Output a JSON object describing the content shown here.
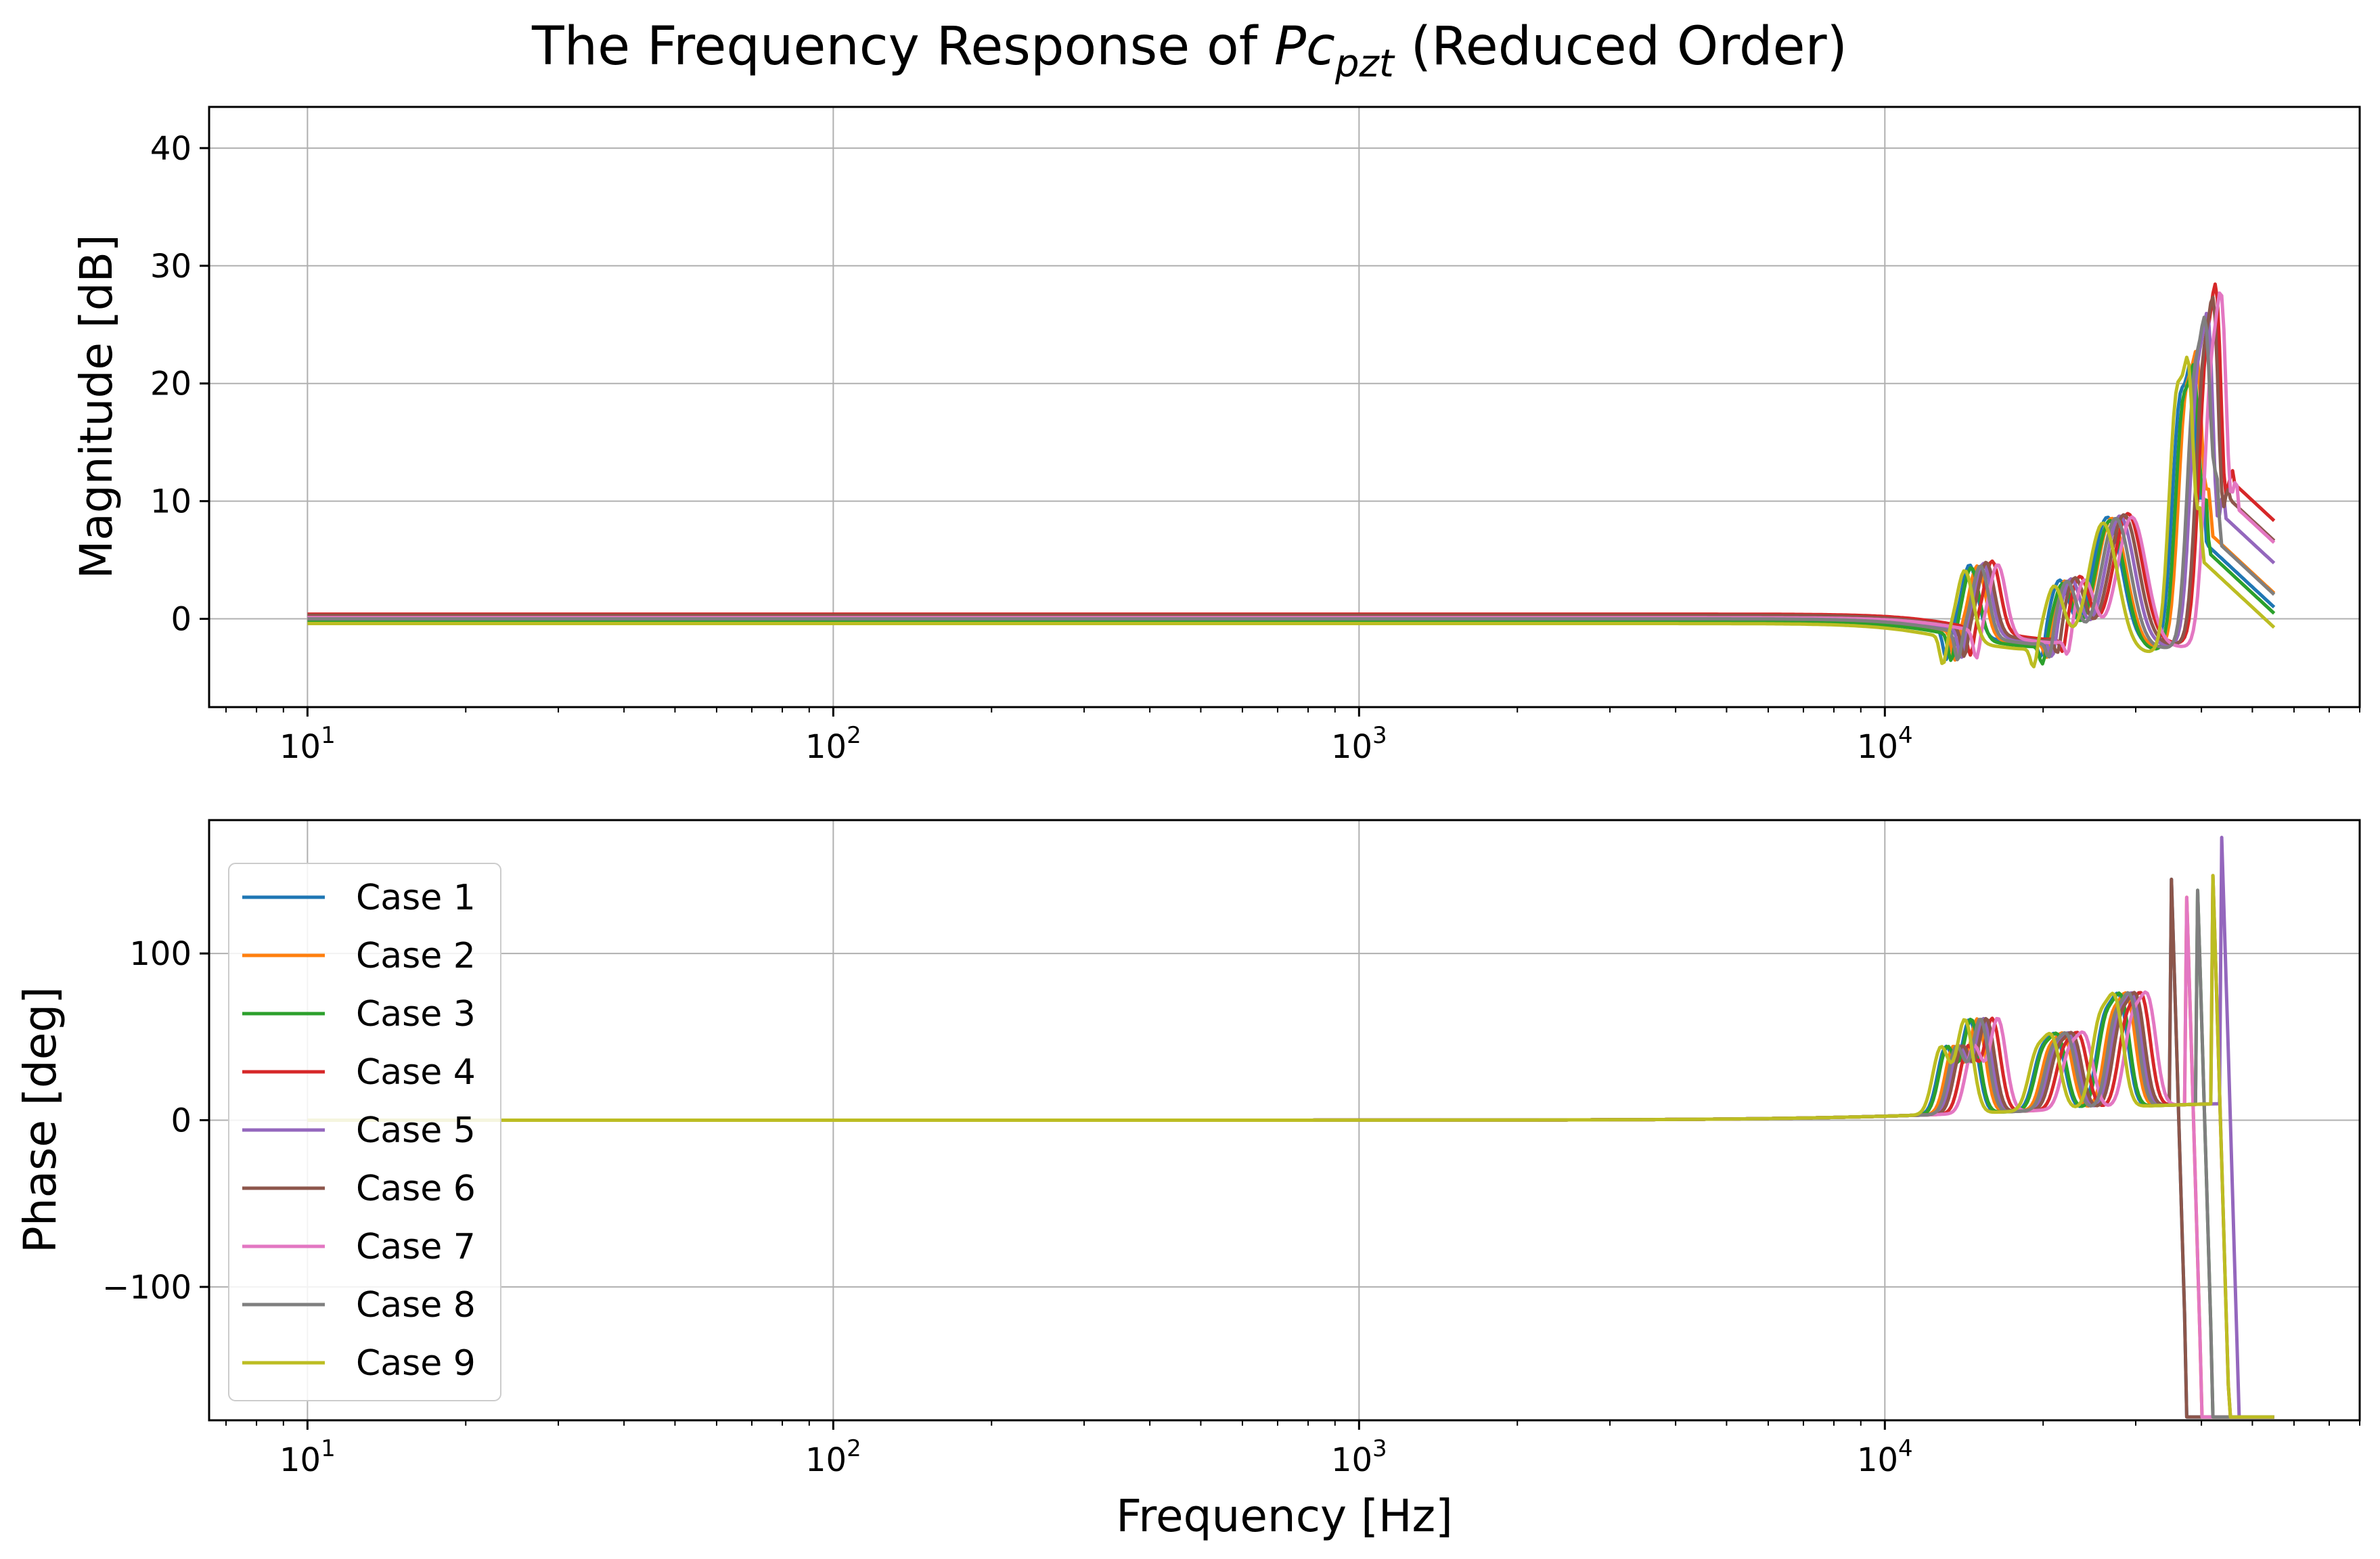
{
  "title": {
    "prefix": "The Frequency Response of ",
    "symbol": "Pc",
    "subscript": "pzt",
    "suffix": " (Reduced Order)"
  },
  "colors": [
    "#1f77b4",
    "#ff7f0e",
    "#2ca02c",
    "#d62728",
    "#9467bd",
    "#8c564b",
    "#e377c2",
    "#7f7f7f",
    "#bcbd22"
  ],
  "chart_data": [
    {
      "type": "line",
      "name": "magnitude",
      "xscale": "log",
      "xlim": [
        6.5,
        80000
      ],
      "ylim": [
        -7.5,
        43.5
      ],
      "yticks": [
        0,
        10,
        20,
        30,
        40
      ],
      "xticks": [
        10,
        100,
        1000,
        10000
      ],
      "xtick_base": "10",
      "xtick_exponents": [
        "1",
        "2",
        "3",
        "4"
      ],
      "xlabel": "",
      "ylabel": "Magnitude [dB]",
      "grid": true,
      "series": [
        {
          "name": "Case 1",
          "dc": 0.1,
          "f0": 13500,
          "f1": 14500,
          "f2": 20500,
          "f3": 21500,
          "f4": 26500,
          "f5": 36500,
          "f6": 38500,
          "f7": 40500,
          "p2": 35,
          "p3": 28,
          "t": -1.0
        },
        {
          "name": "Case 2",
          "dc": 0.0,
          "f0": 14000,
          "f1": 15000,
          "f2": 21000,
          "f3": 22000,
          "f4": 27000,
          "f5": 37500,
          "f6": 39500,
          "f7": 41500,
          "p2": 36,
          "p3": 29,
          "t": -0.5
        },
        {
          "name": "Case 3",
          "dc": -0.2,
          "f0": 13800,
          "f1": 14600,
          "f2": 20600,
          "f3": 21800,
          "f4": 26800,
          "f5": 37000,
          "f6": 39000,
          "f7": 41000,
          "p2": 35,
          "p3": 28,
          "t": -1.5
        },
        {
          "name": "Case 4",
          "dc": 0.4,
          "f0": 15000,
          "f1": 16000,
          "f2": 22500,
          "f3": 23500,
          "f4": 29000,
          "f5": 41000,
          "f6": 43000,
          "f7": 45500,
          "p2": 41,
          "p3": 33,
          "t": 2.5
        },
        {
          "name": "Case 5",
          "dc": 0.2,
          "f0": 14400,
          "f1": 15400,
          "f2": 21500,
          "f3": 22600,
          "f4": 28000,
          "f5": 39500,
          "f6": 41500,
          "f7": 44000,
          "p2": 39,
          "p3": 30,
          "t": 0.5
        },
        {
          "name": "Case 6",
          "dc": 0.3,
          "f0": 14600,
          "f1": 15600,
          "f2": 22000,
          "f3": 23000,
          "f4": 28500,
          "f5": 40500,
          "f6": 42500,
          "f7": 45000,
          "p2": 40,
          "p3": 31,
          "t": 1.5
        },
        {
          "name": "Case 7",
          "dc": 0.1,
          "f0": 15400,
          "f1": 16400,
          "f2": 23000,
          "f3": 24000,
          "f4": 29500,
          "f5": 42000,
          "f6": 44000,
          "f7": 46500,
          "p2": 40,
          "p3": 32,
          "t": 1.0
        },
        {
          "name": "Case 8",
          "dc": 0.0,
          "f0": 14200,
          "f1": 15200,
          "f2": 21200,
          "f3": 22200,
          "f4": 27500,
          "f5": 39000,
          "f6": 41000,
          "f7": 43000,
          "p2": 39,
          "p3": 30,
          "t": -1.0
        },
        {
          "name": "Case 9",
          "dc": -0.4,
          "f0": 13300,
          "f1": 14200,
          "f2": 19800,
          "f3": 21000,
          "f4": 26000,
          "f5": 36000,
          "f6": 38000,
          "f7": 40000,
          "p2": 37,
          "p3": 27,
          "t": -2.0
        }
      ]
    },
    {
      "type": "line",
      "name": "phase",
      "xscale": "log",
      "xlim": [
        6.5,
        80000
      ],
      "ylim": [
        -180,
        180
      ],
      "yticks": [
        -100,
        0,
        100
      ],
      "ytick_labels": [
        "−100",
        "0",
        "100"
      ],
      "xticks": [
        10,
        100,
        1000,
        10000
      ],
      "xtick_base": "10",
      "xtick_exponents": [
        "1",
        "2",
        "3",
        "4"
      ],
      "xlabel": "Frequency [Hz]",
      "ylabel": "Phase [deg]",
      "grid": true,
      "legend": "upper left",
      "series_names": [
        "Case 1",
        "Case 2",
        "Case 3",
        "Case 4",
        "Case 5",
        "Case 6",
        "Case 7",
        "Case 8",
        "Case 9"
      ],
      "phase_peaks": [
        {
          "f": 13500,
          "v": 50
        },
        {
          "f": 15000,
          "v": 70
        },
        {
          "f": 20500,
          "v": 40
        },
        {
          "f": 22000,
          "v": 50
        },
        {
          "f": 27000,
          "v": 60
        },
        {
          "f": 29000,
          "v": 75
        }
      ],
      "wrap_frequencies": [
        37500,
        40000,
        42000,
        45000,
        47000
      ]
    }
  ]
}
